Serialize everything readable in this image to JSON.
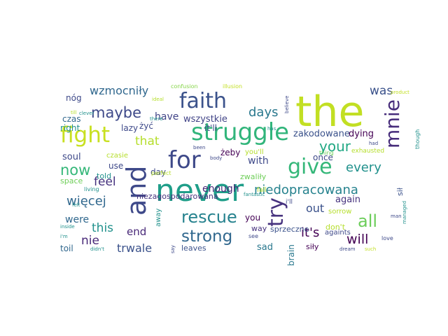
{
  "words": [
    {
      "text": "the",
      "color": "#c2df23"
    },
    {
      "text": "never",
      "color": "#1f9e89"
    },
    {
      "text": "and",
      "color": "#3e4989"
    },
    {
      "text": "struggle",
      "color": "#31b57b"
    },
    {
      "text": "fight",
      "color": "#c8e020"
    },
    {
      "text": "give",
      "color": "#35b779"
    },
    {
      "text": "for",
      "color": "#3e4989"
    },
    {
      "text": "faith",
      "color": "#3b528b"
    },
    {
      "text": "try",
      "color": "#46327e"
    },
    {
      "text": "mnie",
      "color": "#472d7b"
    },
    {
      "text": "rescue",
      "color": "#26828e"
    },
    {
      "text": "strong",
      "color": "#31688e"
    },
    {
      "text": "niedopracowana",
      "color": "#26828e"
    },
    {
      "text": "all",
      "color": "#6ccd5a"
    },
    {
      "text": "maybe",
      "color": "#3e4989"
    },
    {
      "text": "now",
      "color": "#35b779"
    },
    {
      "text": "wzmocniły",
      "color": "#31688e"
    },
    {
      "text": "days",
      "color": "#2a788e"
    },
    {
      "text": "your",
      "color": "#22a884"
    },
    {
      "text": "every",
      "color": "#21918c"
    },
    {
      "text": "will",
      "color": "#440154"
    },
    {
      "text": "it's",
      "color": "#440154"
    },
    {
      "text": "więcej",
      "color": "#31688e"
    },
    {
      "text": "that",
      "color": "#b5de2b"
    },
    {
      "text": "was",
      "color": "#3b528b"
    },
    {
      "text": "feel",
      "color": "#46327e"
    },
    {
      "text": "this",
      "color": "#21918c"
    },
    {
      "text": "trwale",
      "color": "#3b528b"
    },
    {
      "text": "end",
      "color": "#482878"
    },
    {
      "text": "nie",
      "color": "#482878"
    },
    {
      "text": "were",
      "color": "#31688e"
    },
    {
      "text": "out",
      "color": "#3b528b"
    },
    {
      "text": "with",
      "color": "#3e4989"
    },
    {
      "text": "have",
      "color": "#414487"
    },
    {
      "text": "enough",
      "color": "#482878"
    },
    {
      "text": "wszystkie",
      "color": "#414487"
    },
    {
      "text": "zakodowane",
      "color": "#3b528b"
    },
    {
      "text": "again",
      "color": "#46327e"
    },
    {
      "text": "dying",
      "color": "#440154"
    },
    {
      "text": "nóg",
      "color": "#3e4989"
    },
    {
      "text": "czas",
      "color": "#31688e"
    },
    {
      "text": "right",
      "color": "#21918c"
    },
    {
      "text": "lazy",
      "color": "#3e4989"
    },
    {
      "text": "żyć",
      "color": "#3e4989"
    },
    {
      "text": "it'll",
      "color": "#3e4989"
    },
    {
      "text": "soul",
      "color": "#3e4989"
    },
    {
      "text": "żeby",
      "color": "#440154"
    },
    {
      "text": "once",
      "color": "#3e4989"
    },
    {
      "text": "zwaliły",
      "color": "#6ece58"
    },
    {
      "text": "day",
      "color": "#3e4989"
    },
    {
      "text": "use",
      "color": "#3e4989"
    },
    {
      "text": "czasie",
      "color": "#b5de2b"
    },
    {
      "text": "told",
      "color": "#21918c"
    },
    {
      "text": "space",
      "color": "#6ece58"
    },
    {
      "text": "niezagospodarowana",
      "color": "#46327e"
    },
    {
      "text": "sorrow",
      "color": "#b5de2b"
    },
    {
      "text": "brain",
      "color": "#2a788e"
    },
    {
      "text": "you",
      "color": "#440154"
    },
    {
      "text": "way",
      "color": "#46327e"
    },
    {
      "text": "sprzeczne",
      "color": "#3b528b"
    },
    {
      "text": "sad",
      "color": "#2a788e"
    },
    {
      "text": "toil",
      "color": "#31688e"
    },
    {
      "text": "leaves",
      "color": "#3b528b"
    },
    {
      "text": "siły",
      "color": "#440154"
    },
    {
      "text": "sił",
      "color": "#3b528b"
    },
    {
      "text": "don't",
      "color": "#b5de2b"
    },
    {
      "text": "fall",
      "color": "#b5de2b"
    },
    {
      "text": "you'll",
      "color": "#b5de2b"
    },
    {
      "text": "i'll",
      "color": "#3e4989"
    },
    {
      "text": "againts",
      "color": "#3e4989"
    },
    {
      "text": "confusion",
      "color": "#86d549"
    },
    {
      "text": "illusion",
      "color": "#c2df23"
    },
    {
      "text": "till",
      "color": "#b5de2b"
    },
    {
      "text": "clever",
      "color": "#21918c"
    },
    {
      "text": "ideal",
      "color": "#b5de2b"
    },
    {
      "text": "there",
      "color": "#21918c"
    },
    {
      "text": "believe",
      "color": "#3e4989"
    },
    {
      "text": "has",
      "color": "#21918c"
    },
    {
      "text": "product",
      "color": "#c2df23"
    },
    {
      "text": "though",
      "color": "#21918c"
    },
    {
      "text": "had",
      "color": "#3e4989"
    },
    {
      "text": "exhausted",
      "color": "#b5de2b"
    },
    {
      "text": "thing",
      "color": "#6ece58"
    },
    {
      "text": "been",
      "color": "#3e4989"
    },
    {
      "text": "perfect",
      "color": "#b5de2b"
    },
    {
      "text": "body",
      "color": "#3e4989"
    },
    {
      "text": "fantastic",
      "color": "#21918c"
    },
    {
      "text": "living",
      "color": "#21918c"
    },
    {
      "text": "felt",
      "color": "#21918c"
    },
    {
      "text": "away",
      "color": "#21918c"
    },
    {
      "text": "inside",
      "color": "#21918c"
    },
    {
      "text": "didn't",
      "color": "#21918c"
    },
    {
      "text": "say",
      "color": "#3e4989"
    },
    {
      "text": "see",
      "color": "#3e4989"
    },
    {
      "text": "i'm",
      "color": "#21918c"
    },
    {
      "text": "dream",
      "color": "#3e4989"
    },
    {
      "text": "such",
      "color": "#c2df23"
    },
    {
      "text": "love",
      "color": "#3e4989"
    },
    {
      "text": "man",
      "color": "#3e4989"
    },
    {
      "text": "managed",
      "color": "#21918c"
    }
  ]
}
